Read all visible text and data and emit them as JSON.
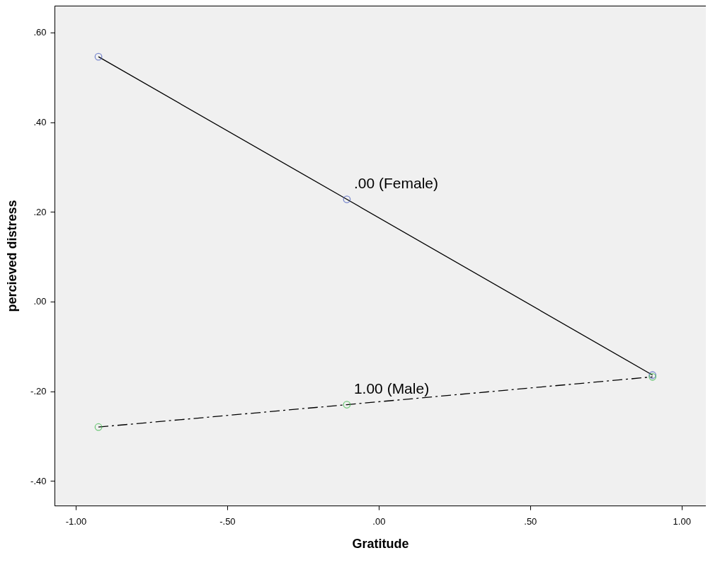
{
  "chart_data": {
    "type": "line",
    "xlabel": "Gratitude",
    "ylabel": "percieved distress",
    "x": [
      -0.925,
      -0.105,
      0.904
    ],
    "series": [
      {
        "name": ".00 (Female)",
        "color": "#4a5fc1",
        "values": [
          0.546,
          0.228,
          -0.164
        ],
        "line_style": "solid"
      },
      {
        "name": "1.00 (Male)",
        "color": "#3cb94a",
        "values": [
          -0.28,
          -0.23,
          -0.168
        ],
        "line_style": "dashed"
      }
    ],
    "xlim": [
      -1.07,
      1.08
    ],
    "ylim": [
      -0.455,
      0.66
    ],
    "xticks": [
      {
        "value": -1,
        "label": "-1.00"
      },
      {
        "value": -0.5,
        "label": "-.50"
      },
      {
        "value": 0,
        "label": ".00"
      },
      {
        "value": 0.5,
        "label": ".50"
      },
      {
        "value": 1,
        "label": "1.00"
      }
    ],
    "yticks": [
      {
        "value": -0.4,
        "label": "-.40"
      },
      {
        "value": -0.2,
        "label": "-.20"
      },
      {
        "value": 0,
        "label": ".00"
      },
      {
        "value": 0.2,
        "label": ".20"
      },
      {
        "value": 0.4,
        "label": ".40"
      },
      {
        "value": 0.6,
        "label": ".60"
      }
    ],
    "grid": false,
    "legend": false,
    "marker": "circle"
  }
}
